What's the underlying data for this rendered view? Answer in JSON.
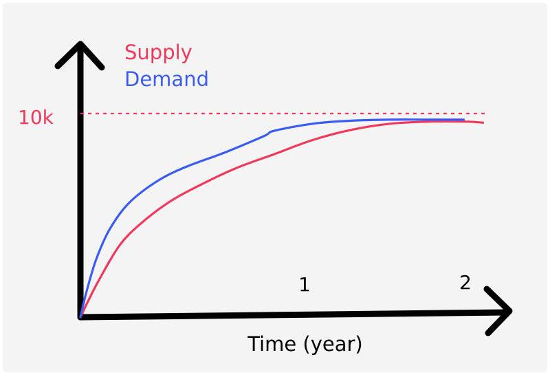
{
  "chart_data": {
    "type": "line",
    "title": "",
    "xlabel": "Time (year)",
    "ylabel": "",
    "xlim": [
      0,
      2.08
    ],
    "ylim": [
      0,
      10000
    ],
    "x_ticks": [
      {
        "value": 1,
        "label": "1"
      },
      {
        "value": 2,
        "label": "2"
      }
    ],
    "reference_line": {
      "y": 10000,
      "label": "10k",
      "style": "dashed",
      "color": "#f0395a"
    },
    "legend": "top-left",
    "grid": false,
    "series": [
      {
        "name": "Supply",
        "color": "#f0395a",
        "x": [
          0,
          0.04,
          0.1,
          0.2,
          0.3,
          0.45,
          0.6,
          0.8,
          1.0,
          1.2,
          1.4,
          1.6,
          1.8,
          2.0,
          2.08
        ],
        "y": [
          0,
          800,
          1900,
          3500,
          4500,
          5600,
          6400,
          7300,
          8000,
          8700,
          9200,
          9500,
          9600,
          9600,
          9550
        ]
      },
      {
        "name": "Demand",
        "color": "#3b5cf2",
        "x": [
          0,
          0.03,
          0.08,
          0.15,
          0.25,
          0.4,
          0.55,
          0.75,
          0.95,
          1.0,
          1.2,
          1.4,
          1.6,
          1.8,
          1.98
        ],
        "y": [
          0,
          1200,
          2800,
          4300,
          5600,
          6700,
          7400,
          8100,
          8900,
          9150,
          9500,
          9650,
          9700,
          9700,
          9700
        ]
      }
    ]
  }
}
